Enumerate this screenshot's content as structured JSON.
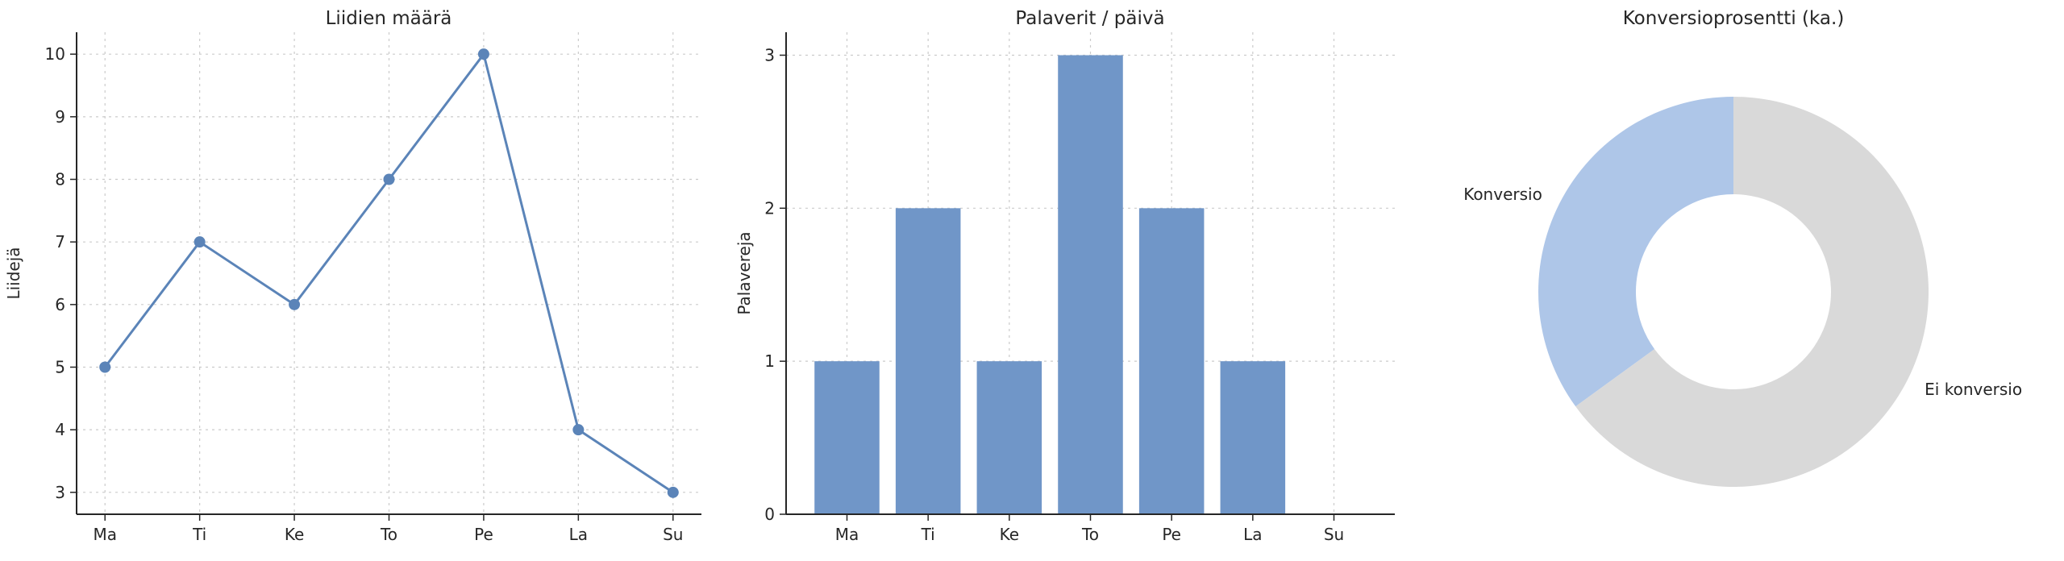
{
  "theme": {
    "background": "#ffffff",
    "text_color": "#262626",
    "grid_color": "#cbcbcb",
    "spine_color": "#262626"
  },
  "chart_data": [
    {
      "type": "line",
      "title": "Liidien määrä",
      "xlabel": "",
      "ylabel": "Liidejä",
      "categories": [
        "Ma",
        "Ti",
        "Ke",
        "To",
        "Pe",
        "La",
        "Su"
      ],
      "values": [
        5,
        7,
        6,
        8,
        10,
        4,
        3
      ],
      "yticks": [
        3,
        4,
        5,
        6,
        7,
        8,
        9,
        10
      ],
      "ylim": [
        2.65,
        10.35
      ],
      "grid": true,
      "legend": "none",
      "line_color": "#5b84b8",
      "marker": "circle"
    },
    {
      "type": "bar",
      "title": "Palaverit / päivä",
      "xlabel": "",
      "ylabel": "Palavereja",
      "categories": [
        "Ma",
        "Ti",
        "Ke",
        "To",
        "Pe",
        "La",
        "Su"
      ],
      "values": [
        1,
        2,
        1,
        3,
        2,
        1,
        0
      ],
      "yticks": [
        0,
        1,
        2,
        3
      ],
      "ylim": [
        0,
        3.15
      ],
      "grid": true,
      "legend": "none",
      "bar_color": "#7096c8",
      "bar_width_ratio": 0.8
    },
    {
      "type": "pie",
      "title": "Konversioprosentti (ka.)",
      "labels": [
        "Konversio",
        "Ei konversio"
      ],
      "values": [
        35,
        65
      ],
      "colors": [
        "#aec6e8",
        "#d9d9d9"
      ],
      "donut_hole_ratio": 0.5,
      "start_angle": 90,
      "direction": "counterclockwise",
      "label_distance": 1.1,
      "legend": "none"
    }
  ]
}
